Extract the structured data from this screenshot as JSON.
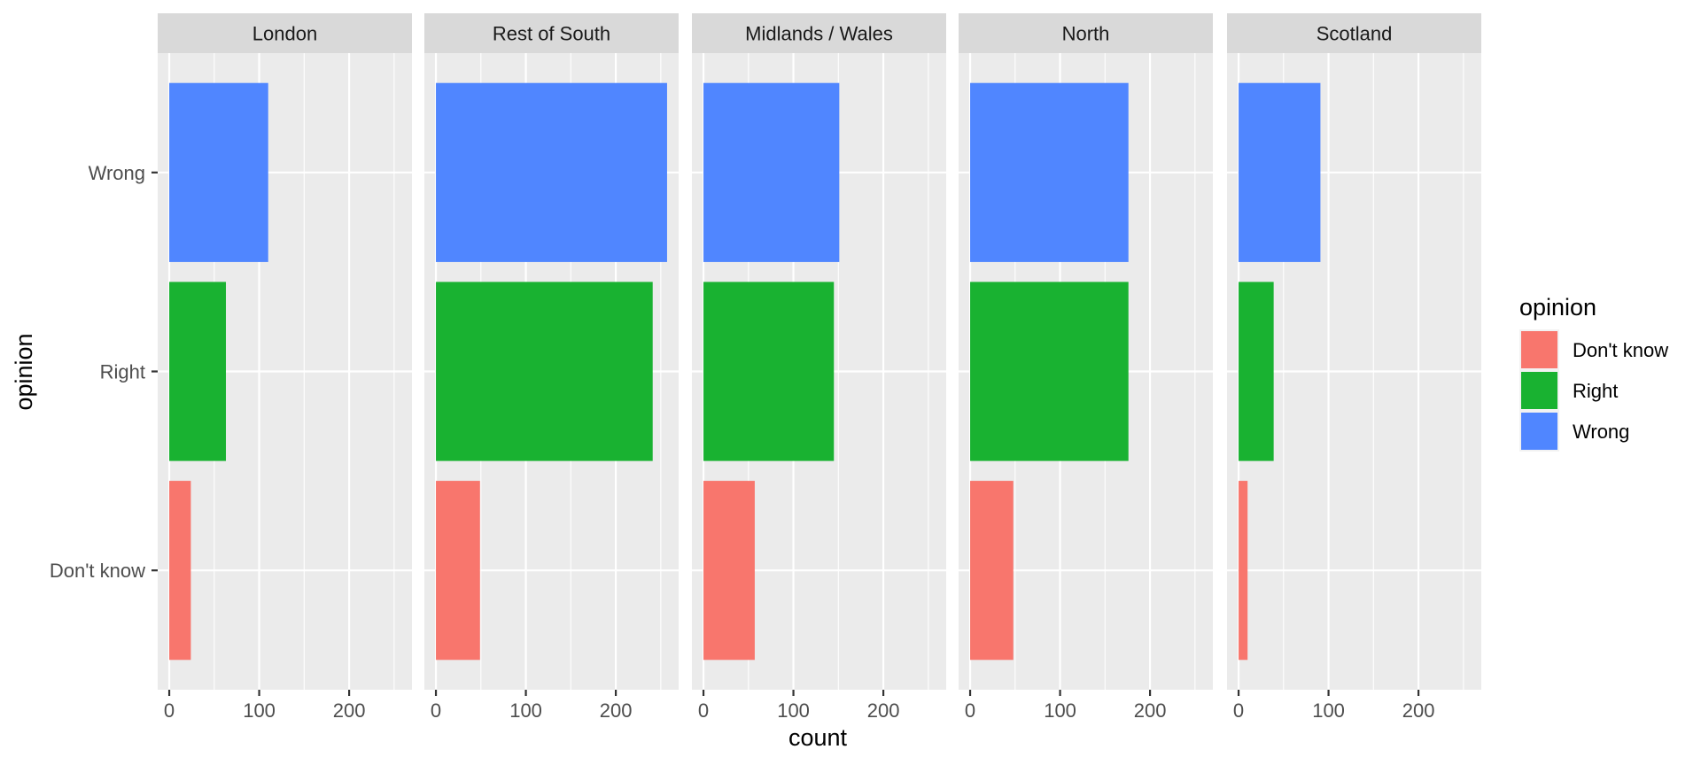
{
  "chart_data": {
    "type": "bar",
    "orientation": "horizontal",
    "facet_by": "region",
    "facets": [
      "London",
      "Rest of South",
      "Midlands / Wales",
      "North",
      "Scotland"
    ],
    "categories": [
      "Don't know",
      "Right",
      "Wrong"
    ],
    "series": [
      {
        "name": "Don't know",
        "color": "#F8766D",
        "values": [
          24,
          49,
          57,
          48,
          10
        ]
      },
      {
        "name": "Right",
        "color": "#19B231",
        "values": [
          63,
          241,
          145,
          176,
          39
        ]
      },
      {
        "name": "Wrong",
        "color": "#5086FF",
        "values": [
          110,
          257,
          151,
          176,
          91
        ]
      }
    ],
    "xlabel": "count",
    "ylabel": "opinion",
    "xlim": [
      -12.85,
      269.85
    ],
    "xticks": [
      0,
      100,
      200
    ],
    "xtick_labels": [
      "0",
      "100",
      "200"
    ],
    "x_minor_gridlines": [
      50,
      150,
      250
    ],
    "grid": true,
    "legend": {
      "title": "opinion",
      "position": "right",
      "entries": [
        "Don't know",
        "Right",
        "Wrong"
      ]
    }
  },
  "colors": {
    "panel_background": "#EBEBEB",
    "strip_background": "#D9D9D9",
    "gridline": "#FFFFFF"
  }
}
